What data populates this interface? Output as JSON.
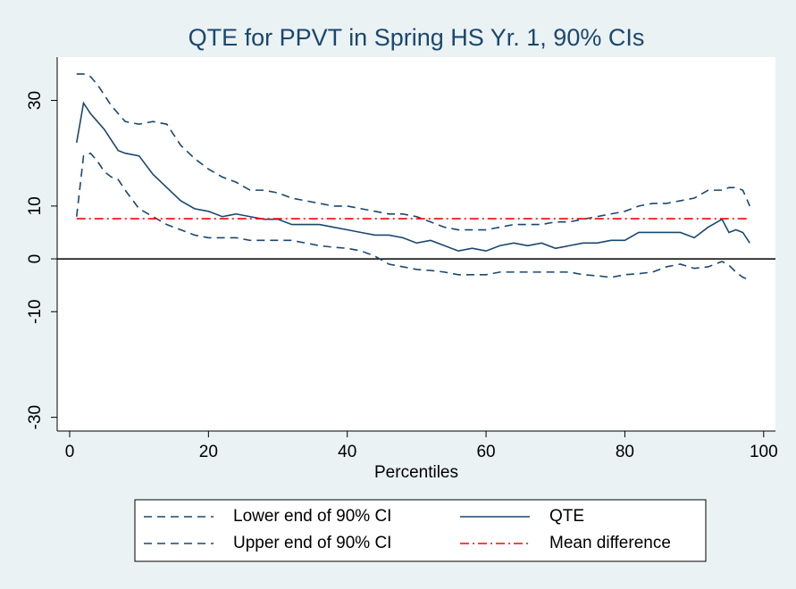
{
  "chart_data": {
    "type": "line",
    "title": "QTE for PPVT in Spring HS Yr. 1, 90% CIs",
    "x_label": "Percentiles",
    "x": [
      1,
      2,
      3,
      4,
      5,
      6,
      7,
      8,
      10,
      12,
      14,
      16,
      18,
      20,
      22,
      24,
      26,
      28,
      30,
      32,
      34,
      36,
      38,
      40,
      42,
      44,
      46,
      48,
      50,
      52,
      54,
      56,
      58,
      60,
      62,
      64,
      66,
      68,
      70,
      72,
      74,
      76,
      78,
      80,
      82,
      84,
      86,
      88,
      90,
      92,
      94,
      95,
      96,
      97,
      98
    ],
    "series": [
      {
        "name": "Lower end of 90% CI",
        "color": "#1a476f",
        "dash": "dashed",
        "values": [
          8,
          19.5,
          20,
          18.5,
          16.5,
          15.5,
          15,
          13,
          9.5,
          8,
          6.5,
          5.5,
          4.5,
          4,
          4,
          4,
          3.5,
          3.5,
          3.5,
          3.5,
          3,
          2.5,
          2.2,
          2,
          1.5,
          0.5,
          -1,
          -1.5,
          -2,
          -2.2,
          -2.5,
          -3,
          -3,
          -3,
          -2.5,
          -2.5,
          -2.5,
          -2.5,
          -2.5,
          -2.5,
          -3,
          -3.2,
          -3.5,
          -3,
          -2.8,
          -2.5,
          -1.5,
          -1,
          -1.8,
          -1.5,
          -0.5,
          -1.2,
          -2.5,
          -3.5,
          -4
        ]
      },
      {
        "name": "QTE",
        "color": "#1a476f",
        "dash": "solid",
        "values": [
          22,
          29.5,
          27.5,
          26,
          24.5,
          22.5,
          20.5,
          20,
          19.5,
          16,
          13.5,
          11,
          9.5,
          9,
          8,
          8.5,
          8,
          7.5,
          7.5,
          6.5,
          6.5,
          6.5,
          6,
          5.5,
          5,
          4.5,
          4.5,
          4,
          3,
          3.5,
          2.5,
          1.5,
          2,
          1.5,
          2.5,
          3,
          2.5,
          3,
          2,
          2.5,
          3,
          3,
          3.5,
          3.5,
          5,
          5,
          5,
          5,
          4,
          6,
          7.5,
          5,
          5.5,
          5,
          3
        ]
      },
      {
        "name": "Upper end of 90% CI",
        "color": "#1a476f",
        "dash": "dashed",
        "values": [
          35,
          35,
          34.5,
          33,
          31,
          29,
          27.5,
          26,
          25.5,
          26,
          25.5,
          21.5,
          19,
          17,
          15.5,
          14.5,
          13,
          13,
          12.5,
          11.5,
          11,
          10.5,
          10,
          10,
          9.5,
          9,
          8.5,
          8.5,
          8,
          7,
          6,
          5.5,
          5.5,
          5.5,
          6,
          6.5,
          6.5,
          6.5,
          7,
          7,
          7.5,
          8,
          8.5,
          9,
          10,
          10.5,
          10.5,
          11,
          11.5,
          13,
          13,
          13.5,
          13.5,
          13,
          10
        ]
      },
      {
        "name": "Mean difference",
        "color": "#ff0000",
        "dash": "dashdot",
        "x": [
          1,
          98
        ],
        "values": [
          7.6,
          7.6
        ]
      }
    ],
    "reference_y": 0,
    "xlim": [
      -1.8,
      101.7
    ],
    "xticks": [
      0,
      20,
      40,
      60,
      80,
      100
    ],
    "ylim": [
      -32.6,
      38.2
    ],
    "yticks": [
      -30,
      -10,
      0,
      10,
      30
    ],
    "legend_columns": 2
  }
}
